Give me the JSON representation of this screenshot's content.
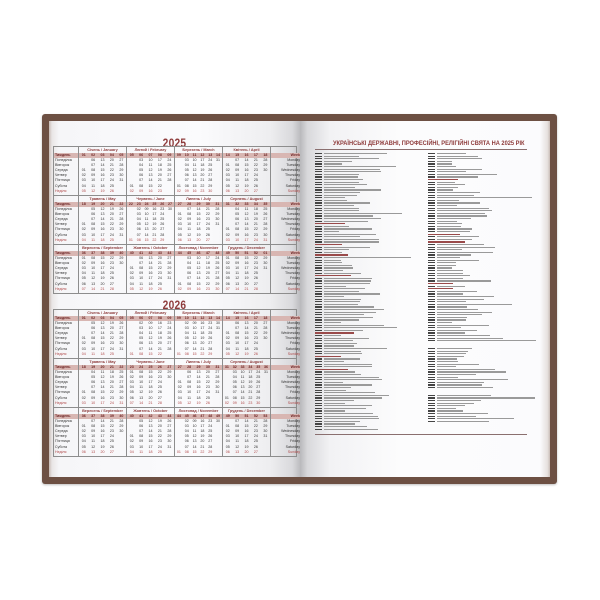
{
  "calendar": {
    "years": [
      "2025",
      "2026"
    ],
    "week_label": "Тиждень",
    "week_label_en": "Week",
    "weekdays_ua": [
      "Понеділок",
      "Вівторок",
      "Середа",
      "Четвер",
      "П'ятниця",
      "Субота",
      "Неділя"
    ],
    "weekdays_en": [
      "Monday",
      "Tuesday",
      "Wednesday",
      "Thursday",
      "Friday",
      "Saturday",
      "Sunday"
    ],
    "months": [
      "Січень / January",
      "Лютий / February",
      "Березень / March",
      "Квітень / April",
      "Травень / May",
      "Червень / June",
      "Липень / July",
      "Серпень / August",
      "Вересень / September",
      "Жовтень / October",
      "Листопад / November",
      "Грудень / December"
    ]
  },
  "holidays_page": {
    "title": "УКРАЇНСЬКІ ДЕРЖАВНІ, ПРОФЕСІЙНІ, РЕЛІГІЙНІ СВЯТА НА 2025 РІК"
  },
  "colors": {
    "cover": "#6d5043",
    "accent": "#8e3b3b",
    "week_row": "#d8b6b2"
  }
}
